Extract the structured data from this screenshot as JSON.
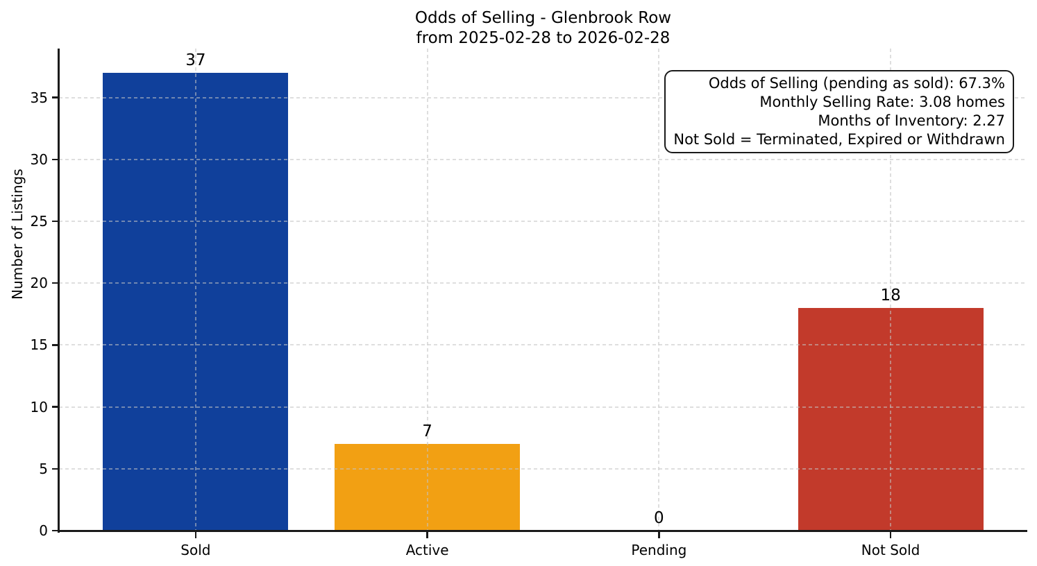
{
  "chart_data": {
    "type": "bar",
    "title": "Odds of Selling - Glenbrook Row",
    "subtitle": "from 2025-02-28 to 2026-02-28",
    "categories": [
      "Sold",
      "Active",
      "Pending",
      "Not Sold"
    ],
    "values": [
      37,
      7,
      0,
      18
    ],
    "value_labels": [
      "37",
      "7",
      "0",
      "18"
    ],
    "bar_colors": [
      "#10409B",
      "#F2A013",
      "#888888",
      "#C23A2B"
    ],
    "xlabel": "",
    "ylabel": "Number of Listings",
    "yticks": [
      0,
      5,
      10,
      15,
      20,
      25,
      30,
      35
    ],
    "ylim": [
      0,
      38.96
    ],
    "xlim": [
      -0.59,
      3.59
    ],
    "bar_width": 0.8,
    "grid": "dashed, both axes, drawn over bars",
    "legend": "none",
    "annotations": [
      "Odds of Selling (pending as sold): 67.3%",
      "Monthly Selling Rate: 3.08 homes",
      "Months of Inventory: 2.27",
      "Not Sold = Terminated, Expired or Withdrawn"
    ]
  },
  "colors": {
    "sold_bar": "#10409B",
    "active_bar": "#F2A013",
    "not_sold_bar": "#C23A2B",
    "spine": "#1a1a1a",
    "gridline": "#c3c3c3",
    "background": "#ffffff",
    "text": "#000000"
  }
}
